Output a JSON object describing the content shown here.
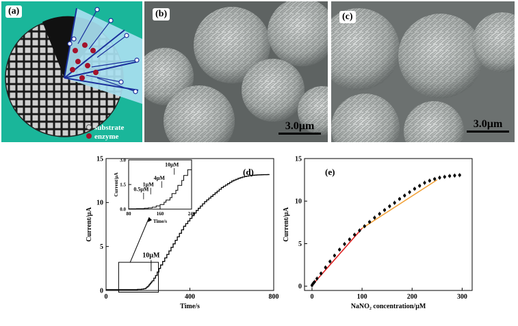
{
  "panel_a": {
    "label": "(a)",
    "legend": [
      {
        "text": "substrate",
        "color": "#d9d9d9"
      },
      {
        "text": "enzyme",
        "color": "#a3122b"
      }
    ],
    "colors": {
      "background": "#1ab69a",
      "wedge": "#a8dff0",
      "enzyme": "#a3122b",
      "arrow": "#1a2f9c"
    }
  },
  "panel_b": {
    "label": "(b)",
    "scale_bar": "3.0µm"
  },
  "panel_c": {
    "label": "(c)",
    "scale_bar": "3.0µm"
  },
  "chart_data": [
    {
      "panel_label": "(d)",
      "type": "line",
      "xlabel": "Time/s",
      "ylabel": "Current/µA",
      "xlim": [
        0,
        800
      ],
      "ylim": [
        0,
        15
      ],
      "xticks": [
        0,
        400,
        800
      ],
      "yticks": [
        0,
        5,
        10,
        15
      ],
      "annotation": "10µM",
      "series": [
        {
          "x": [
            0,
            100,
            150,
            170,
            180,
            190,
            195,
            200,
            205,
            210,
            215,
            220,
            228,
            236,
            244,
            252,
            260,
            270,
            280,
            290,
            300,
            310,
            320,
            330,
            340,
            350,
            360,
            370,
            380,
            390,
            400,
            410,
            420,
            430,
            440,
            450,
            460,
            470,
            480,
            490,
            500,
            510,
            520,
            530,
            540,
            550,
            560,
            570,
            580,
            590,
            600,
            610,
            620,
            630,
            640,
            650,
            660,
            670,
            680,
            690,
            700,
            710,
            720,
            730,
            740,
            750,
            760,
            770,
            780
          ],
          "y": [
            0.1,
            0.1,
            0.12,
            0.15,
            0.2,
            0.3,
            0.4,
            0.5,
            0.65,
            0.8,
            0.95,
            1.1,
            1.4,
            1.7,
            2.1,
            2.5,
            2.9,
            3.3,
            3.7,
            4.1,
            4.5,
            4.9,
            5.3,
            5.7,
            6.1,
            6.5,
            6.9,
            7.3,
            7.6,
            7.9,
            8.2,
            8.5,
            8.8,
            9.1,
            9.35,
            9.6,
            9.85,
            10.1,
            10.3,
            10.5,
            10.7,
            10.9,
            11.1,
            11.3,
            11.5,
            11.7,
            11.85,
            12.0,
            12.15,
            12.3,
            12.45,
            12.55,
            12.65,
            12.75,
            12.83,
            12.9,
            12.95,
            13.0,
            13.05,
            13.08,
            13.1,
            13.12,
            13.14,
            13.15,
            13.16,
            13.17,
            13.17,
            13.18,
            13.18
          ]
        }
      ],
      "zoom_box": {
        "x": [
          60,
          250
        ],
        "y": [
          -0.2,
          3.2
        ]
      },
      "inset": {
        "type": "line",
        "xlabel": "Time/s",
        "ylabel": "Current/µA",
        "xlim": [
          80,
          240
        ],
        "ylim": [
          0,
          3
        ],
        "xticks": [
          80,
          160,
          240
        ],
        "yticks": [
          0.0,
          1.5,
          3.0
        ],
        "annotations": [
          "0.5µM",
          "1µM",
          "4µM",
          "10µM"
        ],
        "series": [
          {
            "x": [
              80,
              100,
              120,
              130,
              140,
              150,
              160,
              170,
              175,
              185,
              190,
              200,
              205,
              215,
              220,
              230,
              240
            ],
            "y": [
              0.02,
              0.03,
              0.05,
              0.08,
              0.12,
              0.2,
              0.28,
              0.42,
              0.55,
              0.7,
              0.95,
              1.15,
              1.45,
              1.75,
              2.05,
              2.4,
              2.6
            ]
          }
        ]
      }
    },
    {
      "panel_label": "(e)",
      "type": "scatter",
      "xlabel": "NaNO₂ concentration/µM",
      "ylabel": "Current/µA",
      "xlim": [
        -15,
        320
      ],
      "ylim": [
        -0.5,
        15
      ],
      "xticks": [
        0,
        100,
        200,
        300
      ],
      "yticks": [
        0,
        5,
        10,
        15
      ],
      "series": [
        {
          "x": [
            0,
            2,
            5,
            10,
            18,
            27,
            36,
            45,
            55,
            65,
            75,
            85,
            95,
            105,
            115,
            125,
            135,
            145,
            155,
            165,
            175,
            185,
            195,
            205,
            215,
            225,
            235,
            245,
            255,
            265,
            275,
            285,
            295
          ],
          "y": [
            0.1,
            0.3,
            0.5,
            0.9,
            1.5,
            2.2,
            2.9,
            3.6,
            4.3,
            4.95,
            5.5,
            6.05,
            6.55,
            7.05,
            7.55,
            8.05,
            8.5,
            8.95,
            9.4,
            9.8,
            10.25,
            10.65,
            11.05,
            11.45,
            11.8,
            12.15,
            12.4,
            12.6,
            12.75,
            12.85,
            12.95,
            13.0,
            13.05
          ],
          "yerr": 0.25
        }
      ],
      "fit_lines": [
        {
          "color": "#e02020",
          "x": [
            0,
            100
          ],
          "y": [
            0.1,
            6.8
          ]
        },
        {
          "color": "#f2a23a",
          "x": [
            100,
            250
          ],
          "y": [
            6.8,
            12.5
          ]
        }
      ]
    }
  ]
}
